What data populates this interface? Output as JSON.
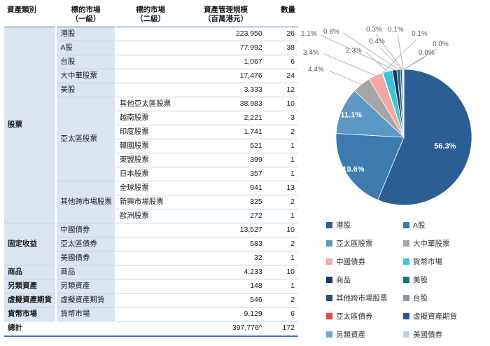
{
  "table": {
    "headers": {
      "category": "資產類別",
      "market1_line1": "標的市場",
      "market1_line2": "（一級）",
      "market2_line1": "標的市場",
      "market2_line2": "（二級）",
      "aum_line1": "資產管理規模",
      "aum_line2": "（百萬港元）",
      "count": "數量"
    },
    "rows": [
      {
        "cat": "股票",
        "catSpan": 14,
        "m1": "港股",
        "m2": "",
        "aum": "223,950",
        "qty": "26"
      },
      {
        "m1": "A股",
        "m2": "",
        "aum": "77,992",
        "qty": "38"
      },
      {
        "m1": "台股",
        "m2": "",
        "aum": "1,067",
        "qty": "6"
      },
      {
        "m1": "大中華股票",
        "m2": "",
        "aum": "17,476",
        "qty": "24"
      },
      {
        "m1": "美股",
        "m2": "",
        "aum": "3,333",
        "qty": "12"
      },
      {
        "m1": "亞太區股票",
        "m1Span": 6,
        "m2": "其他亞太區股票",
        "aum": "38,983",
        "qty": "10"
      },
      {
        "m2": "越南股票",
        "aum": "2,221",
        "qty": "3"
      },
      {
        "m2": "印度股票",
        "aum": "1,741",
        "qty": "2"
      },
      {
        "m2": "韓國股票",
        "aum": "521",
        "qty": "1"
      },
      {
        "m2": "東盟股票",
        "aum": "399",
        "qty": "1"
      },
      {
        "m2": "日本股票",
        "aum": "357",
        "qty": "1"
      },
      {
        "m1": "其他跨市場股票",
        "m1Span": 3,
        "m2": "全球股票",
        "aum": "941",
        "qty": "13"
      },
      {
        "m2": "新興市場股票",
        "aum": "325",
        "qty": "2"
      },
      {
        "m2": "歐洲股票",
        "aum": "272",
        "qty": "1"
      },
      {
        "cat": "固定收益",
        "catSpan": 3,
        "m1": "中國債券",
        "m2": "",
        "aum": "13,527",
        "qty": "10"
      },
      {
        "m1": "亞太區債券",
        "m2": "",
        "aum": "583",
        "qty": "2"
      },
      {
        "m1": "美國債券",
        "m2": "",
        "aum": "32",
        "qty": "1"
      },
      {
        "cat": "商品",
        "catSpan": 1,
        "m1": "商品",
        "m2": "",
        "aum": "4,233",
        "qty": "10"
      },
      {
        "cat": "另類資產",
        "catSpan": 1,
        "m1": "另類資產",
        "m2": "",
        "aum": "148",
        "qty": "1"
      },
      {
        "cat": "虛擬資產期貨",
        "catSpan": 1,
        "m1": "虛擬資產期貨",
        "m2": "",
        "aum": "546",
        "qty": "2"
      },
      {
        "cat": "貨幣市場",
        "catSpan": 1,
        "m1": "貨幣市場",
        "m2": "",
        "aum": "9,129",
        "qty": "6"
      }
    ],
    "total": {
      "label": "總計",
      "aum": "397,776^",
      "qty": "172"
    }
  },
  "chart_data": {
    "type": "pie",
    "unit": "百萬港元",
    "total_value": 397776,
    "legend_position": "bottom-two-columns",
    "slices": [
      {
        "label": "港股",
        "value": 223950,
        "pct": "56.3%",
        "color": "#2b5f94"
      },
      {
        "label": "A股",
        "value": 77992,
        "pct": "19.6%",
        "color": "#3d7ab0"
      },
      {
        "label": "亞太區股票",
        "value": 44222,
        "pct": "11.1%",
        "color": "#5b98c6"
      },
      {
        "label": "大中華股票",
        "value": 17476,
        "pct": "4.4%",
        "color": "#a6a6a6"
      },
      {
        "label": "中國債券",
        "value": 13527,
        "pct": "3.4%",
        "color": "#f1a8a4"
      },
      {
        "label": "亞太區債券",
        "value": 583,
        "pct": "0.1%",
        "color": "#e8433e"
      },
      {
        "label": "貨幣市場",
        "value": 9129,
        "pct": "2.3%",
        "color": "#3fc4da"
      },
      {
        "label": "商品",
        "value": 4233,
        "pct": "1.1%",
        "color": "#17375e"
      },
      {
        "label": "美股",
        "value": 3333,
        "pct": "0.8%",
        "color": "#1f6f80"
      },
      {
        "label": "其他跨市場股票",
        "value": 1538,
        "pct": "0.4%",
        "color": "#27517d"
      },
      {
        "label": "台股",
        "value": 1067,
        "pct": "0.3%",
        "color": "#8496a9"
      },
      {
        "label": "虛擬資產期貨",
        "value": 546,
        "pct": "0.1%",
        "color": "#2f5597"
      },
      {
        "label": "另類資產",
        "value": 148,
        "pct": "0.0%",
        "color": "#6fa8d4"
      },
      {
        "label": "美國債券",
        "value": 32,
        "pct": "0.0%",
        "color": "#b9d1e8"
      }
    ]
  }
}
